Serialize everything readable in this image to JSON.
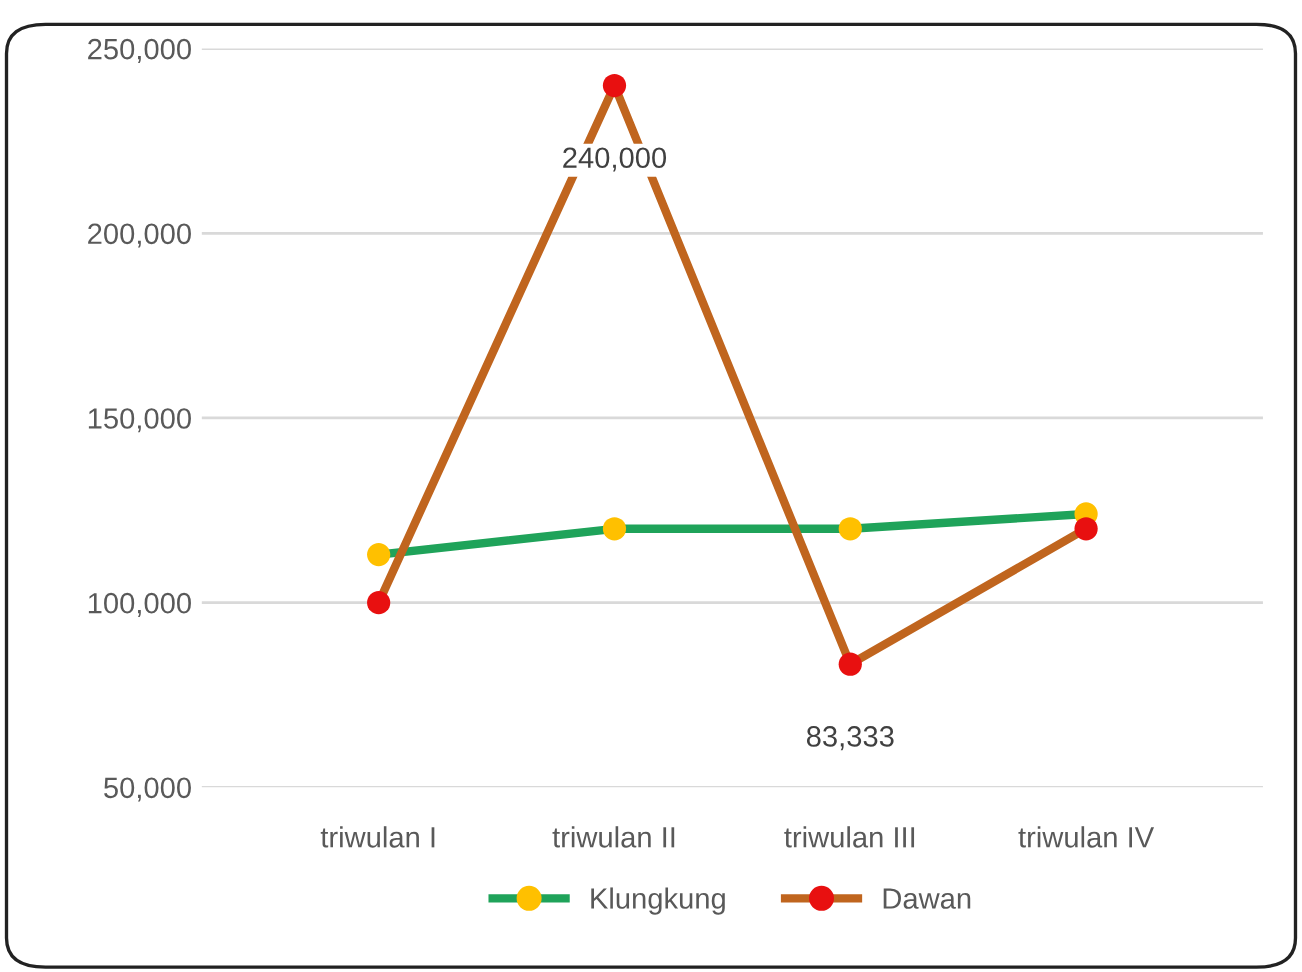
{
  "chart_data": {
    "type": "line",
    "categories": [
      "triwulan I",
      "triwulan II",
      "triwulan III",
      "triwulan IV"
    ],
    "series": [
      {
        "name": "Klungkung",
        "color": "#1fa35a",
        "colors": [
          "#ffc000",
          "#ffc000",
          "#ffc000",
          "#ffc000"
        ],
        "values": [
          113000,
          120000,
          120000,
          124000
        ]
      },
      {
        "name": "Dawan",
        "color": "#c0651e",
        "colors": [
          "#e81010",
          "#e81010",
          "#e81010",
          "#e81010"
        ],
        "values": [
          100000,
          240000,
          83333,
          120000
        ],
        "value_labels": [
          null,
          "240,000",
          "83,333",
          null
        ]
      }
    ],
    "ylim": [
      50000,
      250000
    ],
    "yticks": [
      {
        "value": 50000,
        "label": "50,000"
      },
      {
        "value": 100000,
        "label": "100,000"
      },
      {
        "value": 150000,
        "label": "150,000"
      },
      {
        "value": 200000,
        "label": "200,000"
      },
      {
        "value": 250000,
        "label": "250,000"
      }
    ],
    "grid": "y",
    "legend": "bottom",
    "marker": "circle",
    "line_style": "solid"
  }
}
